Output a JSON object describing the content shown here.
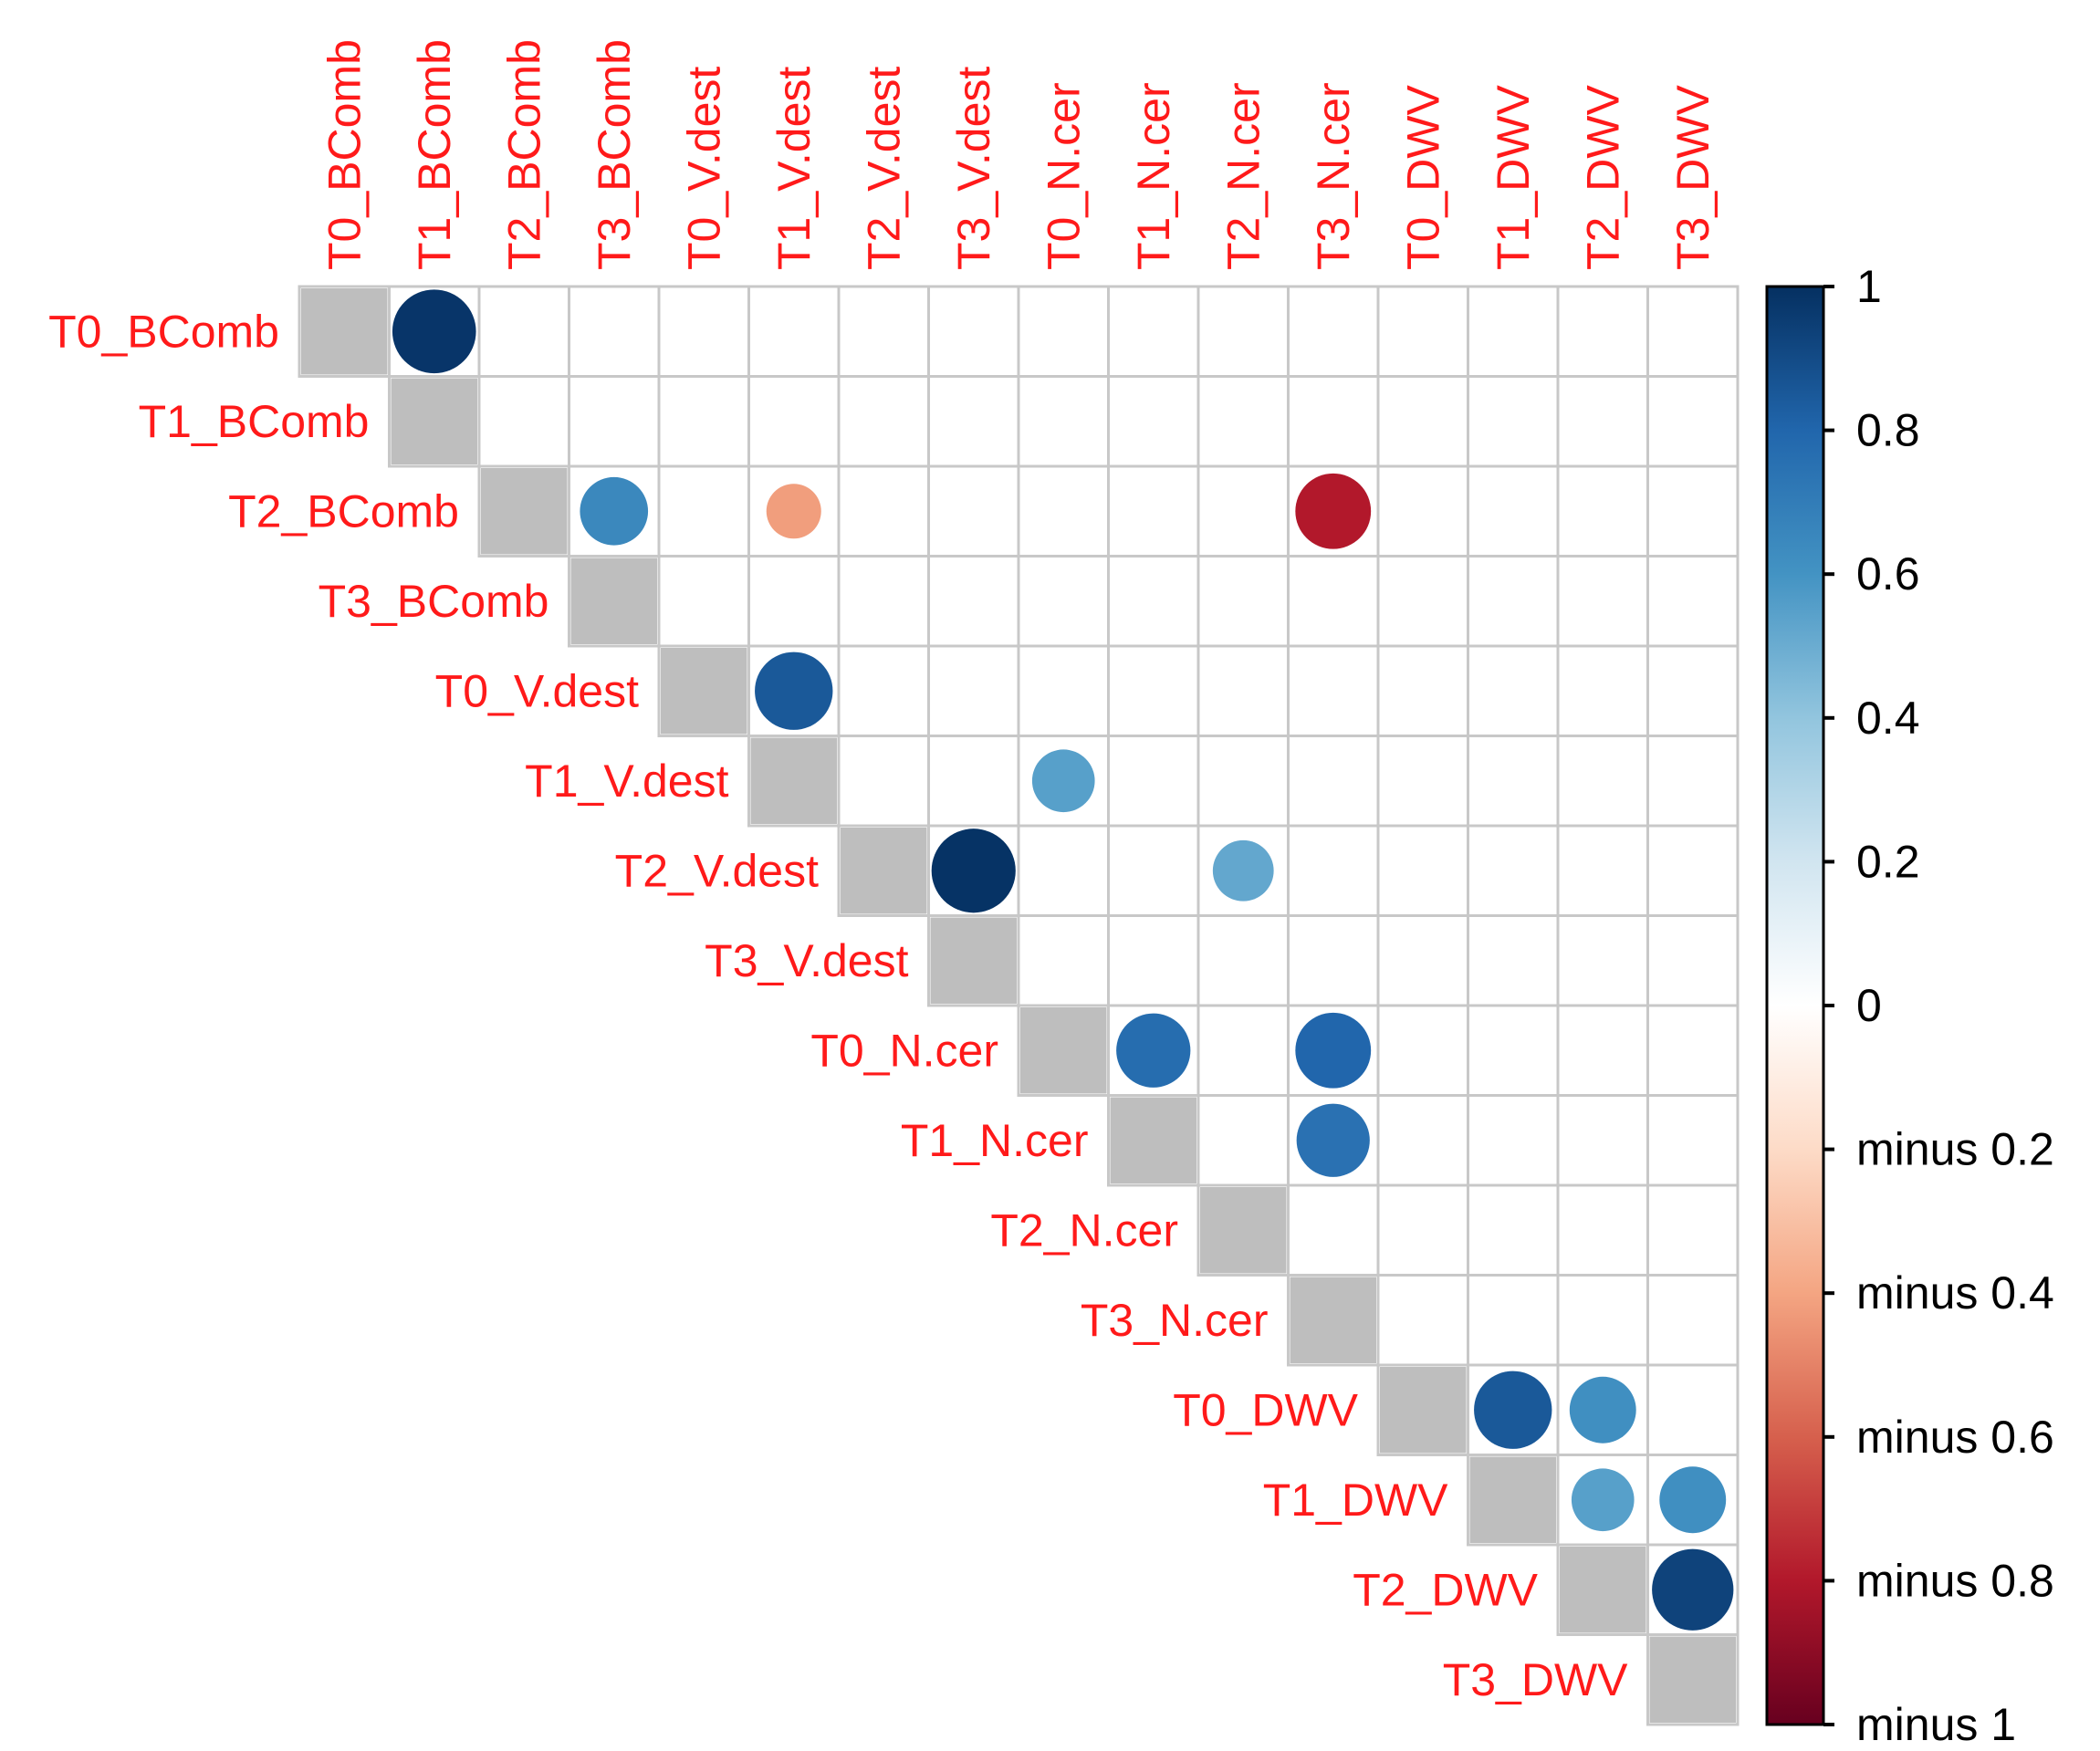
{
  "chart_data": {
    "type": "heatmap",
    "title": "",
    "variables": [
      "T0_BComb",
      "T1_BComb",
      "T2_BComb",
      "T3_BComb",
      "T0_V.dest",
      "T1_V.dest",
      "T2_V.dest",
      "T3_V.dest",
      "T0_N.cer",
      "T1_N.cer",
      "T2_N.cer",
      "T3_N.cer",
      "T0_DWV",
      "T1_DWV",
      "T2_DWV",
      "T3_DWV"
    ],
    "correlations": [
      {
        "row": "T0_BComb",
        "col": "T1_BComb",
        "value": 0.98
      },
      {
        "row": "T2_BComb",
        "col": "T3_BComb",
        "value": 0.65
      },
      {
        "row": "T2_BComb",
        "col": "T1_V.dest",
        "value": -0.42
      },
      {
        "row": "T2_BComb",
        "col": "T3_N.cer",
        "value": -0.8
      },
      {
        "row": "T0_V.dest",
        "col": "T1_V.dest",
        "value": 0.85
      },
      {
        "row": "T1_V.dest",
        "col": "T0_N.cer",
        "value": 0.55
      },
      {
        "row": "T2_V.dest",
        "col": "T3_V.dest",
        "value": 0.99
      },
      {
        "row": "T2_V.dest",
        "col": "T2_N.cer",
        "value": 0.52
      },
      {
        "row": "T0_N.cer",
        "col": "T1_N.cer",
        "value": 0.77
      },
      {
        "row": "T0_N.cer",
        "col": "T3_N.cer",
        "value": 0.8
      },
      {
        "row": "T1_N.cer",
        "col": "T3_N.cer",
        "value": 0.75
      },
      {
        "row": "T0_DWV",
        "col": "T1_DWV",
        "value": 0.85
      },
      {
        "row": "T0_DWV",
        "col": "T2_DWV",
        "value": 0.62
      },
      {
        "row": "T1_DWV",
        "col": "T2_DWV",
        "value": 0.55
      },
      {
        "row": "T1_DWV",
        "col": "T3_DWV",
        "value": 0.62
      },
      {
        "row": "T2_DWV",
        "col": "T3_DWV",
        "value": 0.93
      }
    ],
    "diagonal_color": "#bebebe",
    "colorbar": {
      "range": [
        -1,
        1
      ],
      "ticks": [
        {
          "value": 1,
          "label": "1"
        },
        {
          "value": 0.8,
          "label": "0.8"
        },
        {
          "value": 0.6,
          "label": "0.6"
        },
        {
          "value": 0.4,
          "label": "0.4"
        },
        {
          "value": 0.2,
          "label": "0.2"
        },
        {
          "value": 0,
          "label": "0"
        },
        {
          "value": -0.2,
          "label": "minus 0.2"
        },
        {
          "value": -0.4,
          "label": "minus 0.4"
        },
        {
          "value": -0.6,
          "label": "minus 0.6"
        },
        {
          "value": -0.8,
          "label": "minus 0.8"
        },
        {
          "value": -1,
          "label": "minus 1"
        }
      ],
      "placement": "right"
    },
    "label_color": "#ff1a1a",
    "grid": true
  }
}
